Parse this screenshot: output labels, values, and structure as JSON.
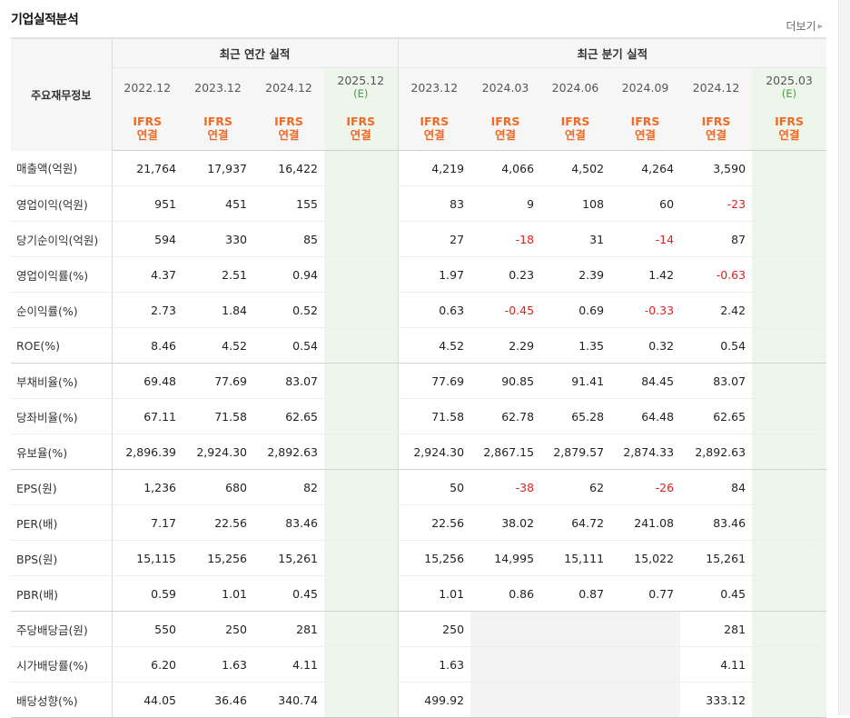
{
  "section_title": "기업실적분석",
  "more_label": "더보기",
  "more_icon": "triangle-right-icon",
  "row_header": "주요재무정보",
  "groups": {
    "annual": "최근 연간 실적",
    "quarterly": "최근 분기 실적"
  },
  "periods": [
    {
      "date": "2022.12",
      "est": "",
      "ifrs": "IFRS",
      "basis": "연결"
    },
    {
      "date": "2023.12",
      "est": "",
      "ifrs": "IFRS",
      "basis": "연결"
    },
    {
      "date": "2024.12",
      "est": "",
      "ifrs": "IFRS",
      "basis": "연결"
    },
    {
      "date": "2025.12",
      "est": "(E)",
      "ifrs": "IFRS",
      "basis": "연결"
    },
    {
      "date": "2023.12",
      "est": "",
      "ifrs": "IFRS",
      "basis": "연결"
    },
    {
      "date": "2024.03",
      "est": "",
      "ifrs": "IFRS",
      "basis": "연결"
    },
    {
      "date": "2024.06",
      "est": "",
      "ifrs": "IFRS",
      "basis": "연결"
    },
    {
      "date": "2024.09",
      "est": "",
      "ifrs": "IFRS",
      "basis": "연결"
    },
    {
      "date": "2024.12",
      "est": "",
      "ifrs": "IFRS",
      "basis": "연결"
    },
    {
      "date": "2025.03",
      "est": "(E)",
      "ifrs": "IFRS",
      "basis": "연결"
    }
  ],
  "rows": [
    {
      "label": "매출액(억원)",
      "values": [
        "21,764",
        "17,937",
        "16,422",
        "",
        "4,219",
        "4,066",
        "4,502",
        "4,264",
        "3,590",
        ""
      ]
    },
    {
      "label": "영업이익(억원)",
      "values": [
        "951",
        "451",
        "155",
        "",
        "83",
        "9",
        "108",
        "60",
        "-23",
        ""
      ]
    },
    {
      "label": "당기순이익(억원)",
      "values": [
        "594",
        "330",
        "85",
        "",
        "27",
        "-18",
        "31",
        "-14",
        "87",
        ""
      ]
    },
    {
      "label": "영업이익률(%)",
      "values": [
        "4.37",
        "2.51",
        "0.94",
        "",
        "1.97",
        "0.23",
        "2.39",
        "1.42",
        "-0.63",
        ""
      ]
    },
    {
      "label": "순이익률(%)",
      "values": [
        "2.73",
        "1.84",
        "0.52",
        "",
        "0.63",
        "-0.45",
        "0.69",
        "-0.33",
        "2.42",
        ""
      ]
    },
    {
      "label": "ROE(%)",
      "values": [
        "8.46",
        "4.52",
        "0.54",
        "",
        "4.52",
        "2.29",
        "1.35",
        "0.32",
        "0.54",
        ""
      ]
    },
    {
      "label": "부채비율(%)",
      "values": [
        "69.48",
        "77.69",
        "83.07",
        "",
        "77.69",
        "90.85",
        "91.41",
        "84.45",
        "83.07",
        ""
      ]
    },
    {
      "label": "당좌비율(%)",
      "values": [
        "67.11",
        "71.58",
        "62.65",
        "",
        "71.58",
        "62.78",
        "65.28",
        "64.48",
        "62.65",
        ""
      ]
    },
    {
      "label": "유보율(%)",
      "values": [
        "2,896.39",
        "2,924.30",
        "2,892.63",
        "",
        "2,924.30",
        "2,867.15",
        "2,879.57",
        "2,874.33",
        "2,892.63",
        ""
      ]
    },
    {
      "label": "EPS(원)",
      "values": [
        "1,236",
        "680",
        "82",
        "",
        "50",
        "-38",
        "62",
        "-26",
        "84",
        ""
      ]
    },
    {
      "label": "PER(배)",
      "values": [
        "7.17",
        "22.56",
        "83.46",
        "",
        "22.56",
        "38.02",
        "64.72",
        "241.08",
        "83.46",
        ""
      ]
    },
    {
      "label": "BPS(원)",
      "values": [
        "15,115",
        "15,256",
        "15,261",
        "",
        "15,256",
        "14,995",
        "15,111",
        "15,022",
        "15,261",
        ""
      ]
    },
    {
      "label": "PBR(배)",
      "values": [
        "0.59",
        "1.01",
        "0.45",
        "",
        "1.01",
        "0.86",
        "0.87",
        "0.77",
        "0.45",
        ""
      ]
    },
    {
      "label": "주당배당금(원)",
      "values": [
        "550",
        "250",
        "281",
        "",
        "250",
        "",
        "",
        "",
        "281",
        ""
      ]
    },
    {
      "label": "시가배당률(%)",
      "values": [
        "6.20",
        "1.63",
        "4.11",
        "",
        "1.63",
        "",
        "",
        "",
        "4.11",
        ""
      ]
    },
    {
      "label": "배당성향(%)",
      "values": [
        "44.05",
        "36.46",
        "340.74",
        "",
        "499.92",
        "",
        "",
        "",
        "333.12",
        ""
      ]
    }
  ],
  "colors": {
    "negative": "#e01f1f",
    "ifrs": "#f06a25",
    "estimate_bg": "#eef5ea",
    "estimate_text": "#40a040"
  }
}
